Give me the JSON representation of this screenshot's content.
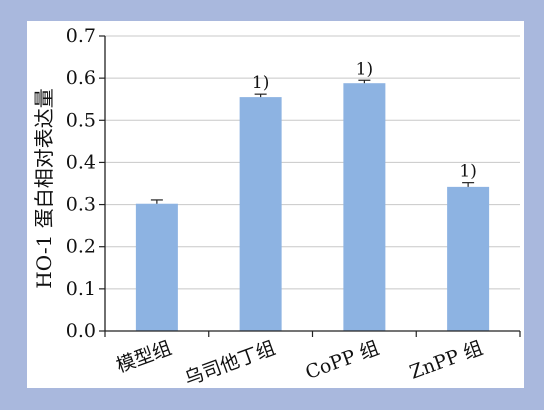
{
  "colors": {
    "frame": "#a9b8dd",
    "plot_background": "#ffffff",
    "bar": "#8db3e2",
    "axis": "#222222",
    "gridline": "#c8c8c8"
  },
  "chart_data": {
    "type": "bar",
    "ylabel": "HO-1 蛋白相对表达量",
    "ylim": [
      0.0,
      0.7
    ],
    "yticks": [
      "0.0",
      "0.1",
      "0.2",
      "0.3",
      "0.4",
      "0.5",
      "0.6",
      "0.7"
    ],
    "grid": true,
    "categories": [
      "模型组",
      "乌司他丁组",
      "CoPP 组",
      "ZnPP 组"
    ],
    "values": [
      0.302,
      0.555,
      0.588,
      0.342
    ],
    "errors": [
      0.009,
      0.007,
      0.007,
      0.01
    ],
    "annotations": [
      "",
      "1)",
      "1)",
      "1)"
    ]
  }
}
